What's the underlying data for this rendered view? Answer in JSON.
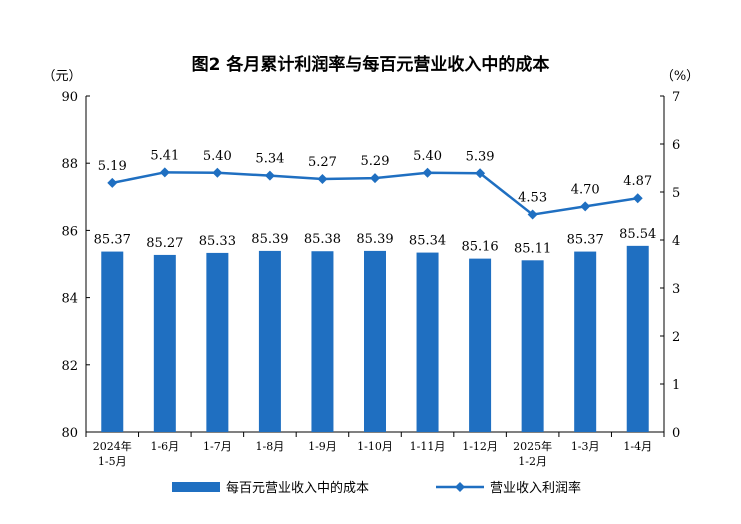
{
  "chart_data": {
    "type": "bar",
    "title": "图2  各月累计利润率与每百元营业收入中的成本",
    "categories": [
      "2024年\n1-5月",
      "1-6月",
      "1-7月",
      "1-8月",
      "1-9月",
      "1-10月",
      "1-11月",
      "1-12月",
      "2025年\n1-2月",
      "1-3月",
      "1-4月"
    ],
    "left_unit": "（元）",
    "right_unit": "（%）",
    "ylim_left": [
      80,
      90
    ],
    "yticks_left": [
      80,
      82,
      84,
      86,
      88,
      90
    ],
    "ylim_right": [
      0,
      7
    ],
    "yticks_right": [
      0,
      1,
      2,
      3,
      4,
      5,
      6,
      7
    ],
    "series": [
      {
        "name": "每百元营业收入中的成本",
        "type": "bar",
        "axis": "left",
        "color": "#1f6fc1",
        "values": [
          85.37,
          85.27,
          85.33,
          85.39,
          85.38,
          85.39,
          85.34,
          85.16,
          85.11,
          85.37,
          85.54
        ],
        "labels": [
          "85.37",
          "85.27",
          "85.33",
          "85.39",
          "85.38",
          "85.39",
          "85.34",
          "85.16",
          "85.11",
          "85.37",
          "85.54"
        ]
      },
      {
        "name": "营业收入利润率",
        "type": "line",
        "axis": "right",
        "color": "#1f6fc1",
        "values": [
          5.19,
          5.41,
          5.4,
          5.34,
          5.27,
          5.29,
          5.4,
          5.39,
          4.53,
          4.7,
          4.87
        ],
        "labels": [
          "5.19",
          "5.41",
          "5.40",
          "5.34",
          "5.27",
          "5.29",
          "5.40",
          "5.39",
          "4.53",
          "4.70",
          "4.87"
        ]
      }
    ],
    "legend_position": "bottom",
    "grid": false
  }
}
